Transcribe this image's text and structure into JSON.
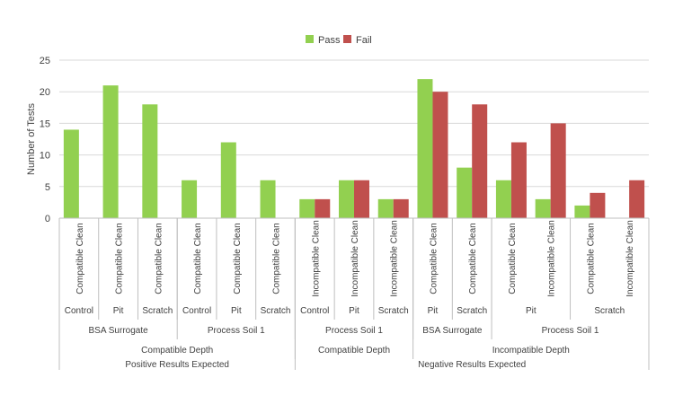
{
  "chart_data": {
    "type": "bar",
    "title": "",
    "ylabel": "Number of Tests",
    "xlabel": "",
    "ylim": [
      0,
      25
    ],
    "yticks": [
      0,
      5,
      10,
      15,
      20,
      25
    ],
    "grid": true,
    "legend_position": "top-center",
    "colors": {
      "Pass": "#92d050",
      "Fail": "#c0504d",
      "grid": "#d9d9d9",
      "axis": "#bfbfbf"
    },
    "series": [
      {
        "name": "Pass",
        "values": [
          14,
          21,
          18,
          6,
          12,
          6,
          3,
          6,
          3,
          22,
          8,
          6,
          3,
          2,
          0
        ]
      },
      {
        "name": "Fail",
        "values": [
          0,
          0,
          0,
          0,
          0,
          0,
          3,
          6,
          3,
          20,
          18,
          12,
          15,
          4,
          6
        ]
      }
    ],
    "categories": [
      "Compatible Clean",
      "Compatible Clean",
      "Compatible Clean",
      "Compatible Clean",
      "Compatible Clean",
      "Compatible Clean",
      "Incompatible Clean",
      "Incompatible Clean",
      "Incompatible Clean",
      "Compatible Clean",
      "Compatible Clean",
      "Compatible Clean",
      "Incompatible Clean",
      "Compatible Clean",
      "Incompatible Clean"
    ],
    "category_levels": [
      [
        {
          "label": "Control",
          "span": 1
        },
        {
          "label": "Pit",
          "span": 1
        },
        {
          "label": "Scratch",
          "span": 1
        },
        {
          "label": "Control",
          "span": 1
        },
        {
          "label": "Pit",
          "span": 1
        },
        {
          "label": "Scratch",
          "span": 1
        },
        {
          "label": "Control",
          "span": 1
        },
        {
          "label": "Pit",
          "span": 1
        },
        {
          "label": "Scratch",
          "span": 1
        },
        {
          "label": "Pit",
          "span": 1
        },
        {
          "label": "Scratch",
          "span": 1
        },
        {
          "label": "Pit",
          "span": 2
        },
        {
          "label": "Scratch",
          "span": 2
        }
      ],
      [
        {
          "label": "BSA Surrogate",
          "span": 3
        },
        {
          "label": "Process Soil 1",
          "span": 3
        },
        {
          "label": "Process Soil 1",
          "span": 3
        },
        {
          "label": "BSA Surrogate",
          "span": 2
        },
        {
          "label": "Process Soil 1",
          "span": 4
        }
      ],
      [
        {
          "label": "Compatible Depth",
          "span": 6
        },
        {
          "label": "Compatible Depth",
          "span": 3
        },
        {
          "label": "Incompatible Depth",
          "span": 6
        }
      ],
      [
        {
          "label": "Positive Results Expected",
          "span": 6
        },
        {
          "label": "Negative Results Expected",
          "span": 9
        }
      ]
    ]
  }
}
